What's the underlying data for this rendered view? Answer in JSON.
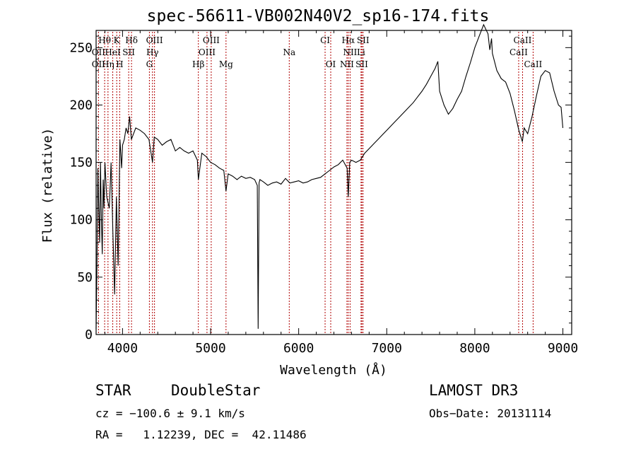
{
  "chart_data": {
    "type": "line",
    "title": "spec-56611-VB002N40V2_sp16-174.fits",
    "xlabel": "Wavelength (Å)",
    "ylabel": "Flux (relative)",
    "xlim": [
      3700,
      9100
    ],
    "ylim": [
      0,
      265
    ],
    "xticks": [
      4000,
      5000,
      6000,
      7000,
      8000,
      9000
    ],
    "yticks": [
      0,
      50,
      100,
      150,
      200,
      250
    ],
    "grid": false,
    "series": [
      {
        "x": [
          3700,
          3710,
          3720,
          3730,
          3740,
          3750,
          3760,
          3770,
          3780,
          3790,
          3800,
          3820,
          3850,
          3870,
          3890,
          3910,
          3930,
          3950,
          3970,
          3990,
          4000,
          4020,
          4040,
          4060,
          4080,
          4100,
          4150,
          4200,
          4250,
          4300,
          4340,
          4360,
          4400,
          4450,
          4500,
          4550,
          4600,
          4650,
          4700,
          4750,
          4800,
          4850,
          4861,
          4900,
          4950,
          5000,
          5050,
          5100,
          5150,
          5175,
          5200,
          5250,
          5300,
          5350,
          5400,
          5450,
          5500,
          5530,
          5540,
          5550,
          5560,
          5600,
          5650,
          5700,
          5750,
          5800,
          5850,
          5900,
          5950,
          6000,
          6050,
          6100,
          6150,
          6200,
          6250,
          6300,
          6350,
          6400,
          6450,
          6500,
          6550,
          6563,
          6580,
          6600,
          6650,
          6700,
          6750,
          6800,
          6850,
          6900,
          6950,
          7000,
          7050,
          7100,
          7150,
          7200,
          7250,
          7300,
          7350,
          7400,
          7450,
          7500,
          7550,
          7580,
          7600,
          7650,
          7700,
          7750,
          7800,
          7850,
          7900,
          7950,
          8000,
          8050,
          8100,
          8150,
          8170,
          8190,
          8200,
          8250,
          8300,
          8350,
          8400,
          8450,
          8500,
          8540,
          8560,
          8600,
          8650,
          8700,
          8750,
          8800,
          8850,
          8900,
          8950,
          8980,
          9000
        ],
        "values": [
          5,
          60,
          145,
          110,
          80,
          150,
          100,
          70,
          135,
          110,
          150,
          120,
          110,
          150,
          90,
          35,
          120,
          60,
          170,
          145,
          165,
          170,
          180,
          175,
          190,
          170,
          180,
          178,
          175,
          170,
          150,
          172,
          170,
          165,
          168,
          170,
          160,
          163,
          160,
          158,
          160,
          152,
          135,
          158,
          155,
          150,
          148,
          145,
          143,
          125,
          140,
          138,
          135,
          138,
          136,
          137,
          135,
          130,
          5,
          132,
          135,
          133,
          130,
          132,
          133,
          131,
          136,
          132,
          133,
          134,
          132,
          133,
          135,
          136,
          137,
          140,
          143,
          146,
          148,
          152,
          145,
          120,
          150,
          152,
          150,
          152,
          158,
          162,
          166,
          170,
          174,
          178,
          182,
          186,
          190,
          194,
          198,
          202,
          207,
          212,
          218,
          225,
          232,
          238,
          212,
          200,
          192,
          197,
          205,
          212,
          225,
          237,
          250,
          260,
          270,
          262,
          248,
          258,
          245,
          230,
          223,
          220,
          210,
          195,
          178,
          168,
          180,
          175,
          190,
          208,
          225,
          230,
          228,
          212,
          200,
          198,
          180
        ]
      }
    ],
    "line_labels": [
      {
        "label": "Hθ",
        "x": 3797,
        "row": 0
      },
      {
        "label": "K",
        "x": 3934,
        "row": 0
      },
      {
        "label": "Hδ",
        "x": 4102,
        "row": 0
      },
      {
        "label": "OIII",
        "x": 4363,
        "row": 0
      },
      {
        "label": "OIII",
        "x": 5007,
        "row": 0
      },
      {
        "label": "CI",
        "x": 6300,
        "row": 0
      },
      {
        "label": "Hα",
        "x": 6563,
        "row": 0
      },
      {
        "label": "SII",
        "x": 6731,
        "row": 0
      },
      {
        "label": "CaII",
        "x": 8542,
        "row": 0
      },
      {
        "label": "OII",
        "x": 3727,
        "row": 1
      },
      {
        "label": "HeI",
        "x": 3889,
        "row": 1
      },
      {
        "label": "SII",
        "x": 4070,
        "row": 1
      },
      {
        "label": "Hγ",
        "x": 4340,
        "row": 1
      },
      {
        "label": "OIII",
        "x": 4959,
        "row": 1
      },
      {
        "label": "Na",
        "x": 5893,
        "row": 1
      },
      {
        "label": "NII",
        "x": 6584,
        "row": 1
      },
      {
        "label": "Li",
        "x": 6708,
        "row": 1
      },
      {
        "label": "CaII",
        "x": 8498,
        "row": 1
      },
      {
        "label": "OII",
        "x": 3727,
        "row": 2
      },
      {
        "label": "Hη",
        "x": 3835,
        "row": 2
      },
      {
        "label": "H",
        "x": 3968,
        "row": 2
      },
      {
        "label": "G",
        "x": 4305,
        "row": 2
      },
      {
        "label": "Hβ",
        "x": 4861,
        "row": 2
      },
      {
        "label": "Mg",
        "x": 5175,
        "row": 2
      },
      {
        "label": "OI",
        "x": 6364,
        "row": 2
      },
      {
        "label": "NII",
        "x": 6548,
        "row": 2
      },
      {
        "label": "SII",
        "x": 6717,
        "row": 2
      },
      {
        "label": "CaII",
        "x": 8662,
        "row": 2
      }
    ],
    "line_marker_color": "#b00000",
    "line_color": "#000000"
  },
  "footer": {
    "class_label": "STAR",
    "subclass_label": "DoubleStar",
    "survey_label": "LAMOST DR3",
    "cz_text": "cz = −100.6 ± 9.1 km/s",
    "obsdate_text": "Obs−Date: 20131114",
    "radec_text": "RA =   1.12239, DEC =  42.11486"
  }
}
